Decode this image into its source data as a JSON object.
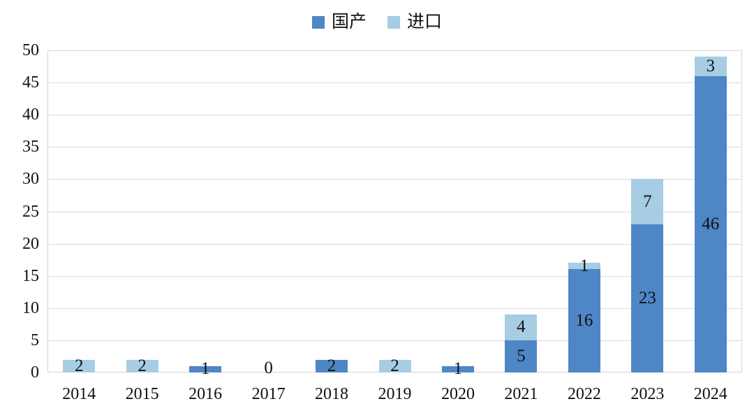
{
  "legend": {
    "domestic_label": "国产",
    "imported_label": "进口"
  },
  "colors": {
    "domestic": "#4e86c6",
    "imported": "#a6cde4",
    "gridline": "#d9d9d9",
    "label_text": "#111111"
  },
  "chart_data": {
    "type": "bar",
    "stacked": true,
    "title": "",
    "xlabel": "",
    "ylabel": "",
    "categories": [
      "2014",
      "2015",
      "2016",
      "2017",
      "2018",
      "2019",
      "2020",
      "2021",
      "2022",
      "2023",
      "2024"
    ],
    "series": [
      {
        "name": "国产",
        "color": "#4e86c6",
        "values": [
          0,
          0,
          1,
          0,
          2,
          0,
          1,
          5,
          16,
          23,
          46
        ]
      },
      {
        "name": "进口",
        "color": "#a6cde4",
        "values": [
          2,
          2,
          0,
          0,
          0,
          2,
          0,
          4,
          1,
          7,
          3
        ]
      }
    ],
    "ylim": [
      0,
      50
    ],
    "ytick_step": 5,
    "ytick_labels": [
      "0",
      "5",
      "10",
      "15",
      "20",
      "25",
      "30",
      "35",
      "40",
      "45",
      "50"
    ],
    "grid": true,
    "legend_position": "top-center",
    "data_labels": "shown inside segments when value > 0; single 0 shown when total is 0",
    "zero_label": "0"
  }
}
